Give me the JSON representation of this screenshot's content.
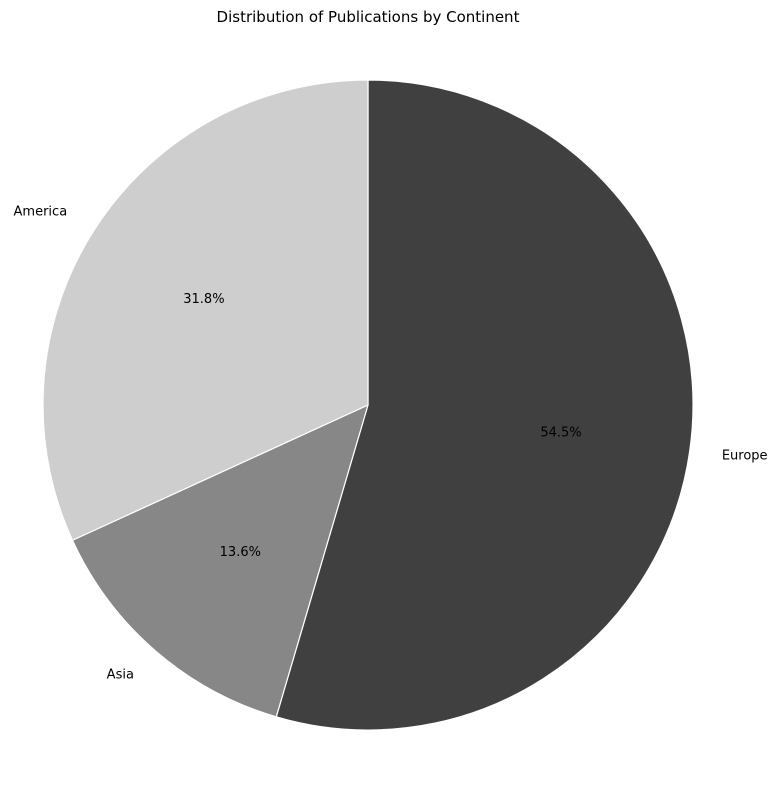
{
  "chart_data": {
    "type": "pie",
    "title": "Distribution of Publications by Continent",
    "slices": [
      {
        "label": "Europe",
        "value": 54.5,
        "pct_label": "54.5%",
        "color": "#404040",
        "text_color": "#000000"
      },
      {
        "label": "Asia",
        "value": 13.6,
        "pct_label": "13.6%",
        "color": "#878787",
        "text_color": "#000000"
      },
      {
        "label": "America",
        "value": 31.8,
        "pct_label": "31.8%",
        "color": "#cecece",
        "text_color": "#000000"
      }
    ],
    "start_angle_deg": 90,
    "direction": "clockwise",
    "edge_color": "#ffffff",
    "legend": "none"
  }
}
